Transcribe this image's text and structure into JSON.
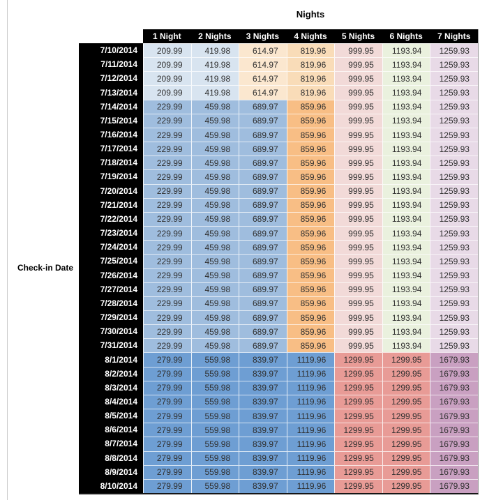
{
  "title": "Nights",
  "row_axis_label": "Check-in Date",
  "columns": [
    "1 Night",
    "2 Nights",
    "3 Nights",
    "4 Nights",
    "5 Nights",
    "6 Nights",
    "7 Nights"
  ],
  "chart_data": {
    "type": "table",
    "title": "Nights",
    "row_header": "Check-in Date",
    "columns": [
      "1 Night",
      "2 Nights",
      "3 Nights",
      "4 Nights",
      "5 Nights",
      "6 Nights",
      "7 Nights"
    ],
    "rows": [
      {
        "date": "7/10/2014",
        "band": 0,
        "values": [
          209.99,
          419.98,
          614.97,
          819.96,
          999.95,
          1193.94,
          1259.93
        ]
      },
      {
        "date": "7/11/2014",
        "band": 0,
        "values": [
          209.99,
          419.98,
          614.97,
          819.96,
          999.95,
          1193.94,
          1259.93
        ]
      },
      {
        "date": "7/12/2014",
        "band": 0,
        "values": [
          209.99,
          419.98,
          614.97,
          819.96,
          999.95,
          1193.94,
          1259.93
        ]
      },
      {
        "date": "7/13/2014",
        "band": 0,
        "values": [
          209.99,
          419.98,
          614.97,
          819.96,
          999.95,
          1193.94,
          1259.93
        ]
      },
      {
        "date": "7/14/2014",
        "band": 1,
        "values": [
          229.99,
          459.98,
          689.97,
          859.96,
          999.95,
          1193.94,
          1259.93
        ]
      },
      {
        "date": "7/15/2014",
        "band": 1,
        "values": [
          229.99,
          459.98,
          689.97,
          859.96,
          999.95,
          1193.94,
          1259.93
        ]
      },
      {
        "date": "7/16/2014",
        "band": 1,
        "values": [
          229.99,
          459.98,
          689.97,
          859.96,
          999.95,
          1193.94,
          1259.93
        ]
      },
      {
        "date": "7/17/2014",
        "band": 1,
        "values": [
          229.99,
          459.98,
          689.97,
          859.96,
          999.95,
          1193.94,
          1259.93
        ]
      },
      {
        "date": "7/18/2014",
        "band": 1,
        "values": [
          229.99,
          459.98,
          689.97,
          859.96,
          999.95,
          1193.94,
          1259.93
        ]
      },
      {
        "date": "7/19/2014",
        "band": 1,
        "values": [
          229.99,
          459.98,
          689.97,
          859.96,
          999.95,
          1193.94,
          1259.93
        ]
      },
      {
        "date": "7/20/2014",
        "band": 1,
        "values": [
          229.99,
          459.98,
          689.97,
          859.96,
          999.95,
          1193.94,
          1259.93
        ]
      },
      {
        "date": "7/21/2014",
        "band": 1,
        "values": [
          229.99,
          459.98,
          689.97,
          859.96,
          999.95,
          1193.94,
          1259.93
        ]
      },
      {
        "date": "7/22/2014",
        "band": 1,
        "values": [
          229.99,
          459.98,
          689.97,
          859.96,
          999.95,
          1193.94,
          1259.93
        ]
      },
      {
        "date": "7/23/2014",
        "band": 1,
        "values": [
          229.99,
          459.98,
          689.97,
          859.96,
          999.95,
          1193.94,
          1259.93
        ]
      },
      {
        "date": "7/24/2014",
        "band": 1,
        "values": [
          229.99,
          459.98,
          689.97,
          859.96,
          999.95,
          1193.94,
          1259.93
        ]
      },
      {
        "date": "7/25/2014",
        "band": 1,
        "values": [
          229.99,
          459.98,
          689.97,
          859.96,
          999.95,
          1193.94,
          1259.93
        ]
      },
      {
        "date": "7/26/2014",
        "band": 1,
        "values": [
          229.99,
          459.98,
          689.97,
          859.96,
          999.95,
          1193.94,
          1259.93
        ]
      },
      {
        "date": "7/27/2014",
        "band": 1,
        "values": [
          229.99,
          459.98,
          689.97,
          859.96,
          999.95,
          1193.94,
          1259.93
        ]
      },
      {
        "date": "7/28/2014",
        "band": 1,
        "values": [
          229.99,
          459.98,
          689.97,
          859.96,
          999.95,
          1193.94,
          1259.93
        ]
      },
      {
        "date": "7/29/2014",
        "band": 1,
        "values": [
          229.99,
          459.98,
          689.97,
          859.96,
          999.95,
          1193.94,
          1259.93
        ]
      },
      {
        "date": "7/30/2014",
        "band": 1,
        "values": [
          229.99,
          459.98,
          689.97,
          859.96,
          999.95,
          1193.94,
          1259.93
        ]
      },
      {
        "date": "7/31/2014",
        "band": 1,
        "values": [
          229.99,
          459.98,
          689.97,
          859.96,
          999.95,
          1193.94,
          1259.93
        ]
      },
      {
        "date": "8/1/2014",
        "band": 2,
        "values": [
          279.99,
          559.98,
          839.97,
          1119.96,
          1299.95,
          1299.95,
          1679.93
        ]
      },
      {
        "date": "8/2/2014",
        "band": 2,
        "values": [
          279.99,
          559.98,
          839.97,
          1119.96,
          1299.95,
          1299.95,
          1679.93
        ]
      },
      {
        "date": "8/3/2014",
        "band": 2,
        "values": [
          279.99,
          559.98,
          839.97,
          1119.96,
          1299.95,
          1299.95,
          1679.93
        ]
      },
      {
        "date": "8/4/2014",
        "band": 2,
        "values": [
          279.99,
          559.98,
          839.97,
          1119.96,
          1299.95,
          1299.95,
          1679.93
        ]
      },
      {
        "date": "8/5/2014",
        "band": 2,
        "values": [
          279.99,
          559.98,
          839.97,
          1119.96,
          1299.95,
          1299.95,
          1679.93
        ]
      },
      {
        "date": "8/6/2014",
        "band": 2,
        "values": [
          279.99,
          559.98,
          839.97,
          1119.96,
          1299.95,
          1299.95,
          1679.93
        ]
      },
      {
        "date": "8/7/2014",
        "band": 2,
        "values": [
          279.99,
          559.98,
          839.97,
          1119.96,
          1299.95,
          1299.95,
          1679.93
        ]
      },
      {
        "date": "8/8/2014",
        "band": 2,
        "values": [
          279.99,
          559.98,
          839.97,
          1119.96,
          1299.95,
          1299.95,
          1679.93
        ]
      },
      {
        "date": "8/9/2014",
        "band": 2,
        "values": [
          279.99,
          559.98,
          839.97,
          1119.96,
          1299.95,
          1299.95,
          1679.93
        ]
      },
      {
        "date": "8/10/2014",
        "band": 2,
        "values": [
          279.99,
          559.98,
          839.97,
          1119.96,
          1299.95,
          1299.95,
          1679.93
        ]
      }
    ]
  },
  "styles": {
    "header_bg": "#000000",
    "header_text": "#ffffff",
    "value_text": "#2f2f2f",
    "page_edge_line": "#c9c9c9",
    "bands": [
      {
        "label": "7/10-7/13",
        "cell_colors": [
          "#D8E4F0",
          "#D8E4F0",
          "#FBE7CF",
          "#F9DCB8",
          "#F2DAD8",
          "#EAF1DE",
          "#E8DAE7"
        ]
      },
      {
        "label": "7/14-7/31",
        "cell_colors": [
          "#9FBDDE",
          "#9FBDDE",
          "#9FBDDE",
          "#F8BE85",
          "#F2DAD8",
          "#EAF1DE",
          "#E8DAE7"
        ]
      },
      {
        "label": "8/1-8/10",
        "cell_colors": [
          "#6E9ED3",
          "#6E9ED3",
          "#6E9ED3",
          "#6E9ED3",
          "#E89B96",
          "#E89B96",
          "#C9A0C1"
        ]
      }
    ]
  }
}
